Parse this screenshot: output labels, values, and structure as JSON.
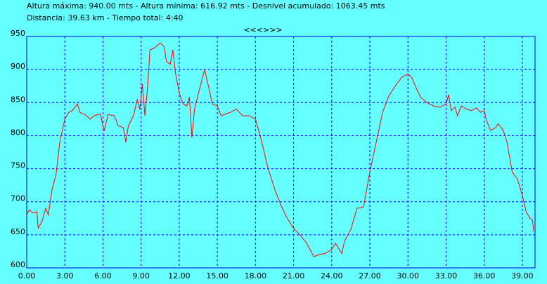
{
  "header": {
    "line1": "Altura máxima: 940.00 mts - Altura mínima: 616.92 mts - Desnivel acumulado: 1063.45 mts",
    "line2": "Distancia: 39.63 km - Tiempo total: 4:40",
    "nav": "<<<>>>"
  },
  "chart_data": {
    "type": "line",
    "color": "#ff0000",
    "grid": true,
    "x": [
      0,
      0.2,
      0.5,
      0.8,
      0.9,
      1.2,
      1.5,
      1.7,
      2.0,
      2.3,
      2.6,
      3.0,
      3.3,
      3.6,
      4.0,
      4.2,
      4.6,
      5.0,
      5.3,
      5.8,
      6.0,
      6.1,
      6.4,
      6.9,
      7.2,
      7.6,
      7.8,
      8.0,
      8.4,
      8.7,
      8.9,
      9.1,
      9.3,
      9.5,
      9.7,
      10.0,
      10.5,
      10.8,
      11.0,
      11.3,
      11.5,
      11.7,
      12.0,
      12.3,
      12.6,
      12.8,
      13.0,
      13.2,
      13.6,
      14.0,
      14.3,
      14.6,
      15.0,
      15.3,
      16.0,
      16.5,
      17.0,
      17.5,
      18.0,
      18.5,
      19.0,
      19.5,
      20.0,
      20.5,
      21.0,
      21.5,
      22.0,
      22.6,
      23.0,
      23.5,
      24.0,
      24.3,
      24.6,
      24.8,
      25.0,
      25.5,
      26.0,
      26.5,
      27.0,
      27.5,
      28.0,
      28.5,
      29.0,
      29.5,
      30.0,
      30.3,
      30.7,
      31.0,
      31.5,
      32.0,
      32.5,
      33.0,
      33.2,
      33.4,
      33.7,
      33.9,
      34.2,
      34.6,
      35.0,
      35.4,
      35.7,
      36.0,
      36.2,
      36.5,
      36.9,
      37.1,
      37.5,
      37.8,
      38.2,
      38.6,
      39.0,
      39.3,
      39.6,
      39.8,
      39.9
    ],
    "values": [
      680,
      688,
      683,
      685,
      660,
      670,
      690,
      680,
      720,
      740,
      790,
      825,
      835,
      838,
      848,
      835,
      832,
      825,
      830,
      833,
      815,
      808,
      832,
      830,
      815,
      812,
      790,
      815,
      830,
      855,
      840,
      878,
      830,
      870,
      930,
      932,
      940,
      935,
      912,
      908,
      930,
      895,
      865,
      848,
      845,
      858,
      797,
      840,
      870,
      900,
      875,
      848,
      845,
      830,
      835,
      840,
      830,
      830,
      825,
      790,
      750,
      720,
      695,
      675,
      660,
      650,
      638,
      617,
      620,
      622,
      628,
      637,
      628,
      622,
      640,
      658,
      690,
      692,
      745,
      790,
      835,
      860,
      875,
      888,
      893,
      888,
      870,
      858,
      850,
      845,
      843,
      848,
      862,
      838,
      843,
      830,
      845,
      840,
      838,
      842,
      835,
      838,
      822,
      808,
      812,
      818,
      808,
      790,
      745,
      735,
      710,
      685,
      675,
      672,
      655
    ],
    "xlim": [
      0,
      40
    ],
    "ylim": [
      600,
      950
    ],
    "xticks": [
      {
        "value": 0,
        "label": "0.00"
      },
      {
        "value": 3,
        "label": "3.00"
      },
      {
        "value": 6,
        "label": "6.00"
      },
      {
        "value": 9,
        "label": "9.00"
      },
      {
        "value": 12,
        "label": "12.00"
      },
      {
        "value": 15,
        "label": "15.00"
      },
      {
        "value": 18,
        "label": "18.00"
      },
      {
        "value": 21,
        "label": "21.00"
      },
      {
        "value": 24,
        "label": "24.00"
      },
      {
        "value": 27,
        "label": "27.00"
      },
      {
        "value": 30,
        "label": "30.00"
      },
      {
        "value": 33,
        "label": "33.00"
      },
      {
        "value": 36,
        "label": "36.00"
      },
      {
        "value": 39,
        "label": "39.00"
      }
    ],
    "yticks": [
      600,
      650,
      700,
      750,
      800,
      850,
      900,
      950
    ]
  }
}
